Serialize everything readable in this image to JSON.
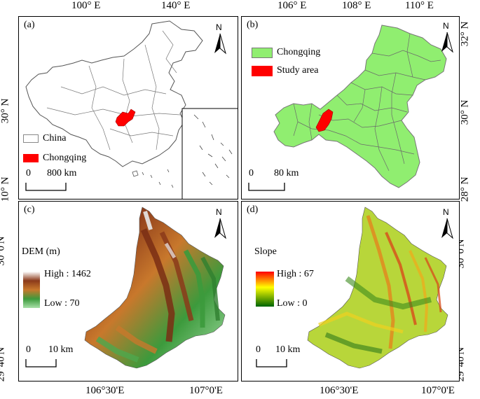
{
  "top_axis": {
    "left_ticks": [
      "100° E",
      "140° E"
    ],
    "right_ticks": [
      "106° E",
      "108° E",
      "110° E"
    ]
  },
  "bottom_axis": {
    "left_ticks": [
      "106°30'E",
      "107°0'E"
    ],
    "right_ticks": [
      "106°30'E",
      "107°0'E"
    ]
  },
  "left_axis": {
    "top_ticks": [
      "30° N",
      "10° N"
    ],
    "bottom_ticks": [
      "30°0'N",
      "29°40'N"
    ]
  },
  "right_axis": {
    "top_ticks": [
      "32° N",
      "30° N",
      "28° N"
    ],
    "bottom_ticks": [
      "30°0'N",
      "29°40'N"
    ]
  },
  "panels": {
    "a": {
      "label": "(a)",
      "north": "N",
      "legend": [
        {
          "label": "China",
          "color": "#ffffff"
        },
        {
          "label": "Chongqing",
          "color": "#ff0000"
        }
      ],
      "scale": {
        "zero": "0",
        "dist": "800 km"
      }
    },
    "b": {
      "label": "(b)",
      "north": "N",
      "legend": [
        {
          "label": "Chongqing",
          "color": "#90ee70"
        },
        {
          "label": "Study area",
          "color": "#ff0000"
        }
      ],
      "scale": {
        "zero": "0",
        "dist": "80 km"
      }
    },
    "c": {
      "label": "(c)",
      "north": "N",
      "legend_title": "DEM (m)",
      "high_label": "High : 1462",
      "low_label": "Low : 70",
      "scale": {
        "zero": "0",
        "dist": "10 km"
      }
    },
    "d": {
      "label": "(d)",
      "north": "N",
      "legend_title": "Slope",
      "high_label": "High : 67",
      "low_label": "Low : 0",
      "scale": {
        "zero": "0",
        "dist": "10 km"
      }
    }
  },
  "colors": {
    "chongqing_green": "#90ee70",
    "study_red": "#ff0000",
    "dem_ramp": [
      "#ffffff",
      "#8b3a1a",
      "#c8782c",
      "#3c9a3c",
      "#a8e0a8"
    ],
    "slope_ramp": [
      "#ff0000",
      "#ffff00",
      "#006400"
    ]
  }
}
